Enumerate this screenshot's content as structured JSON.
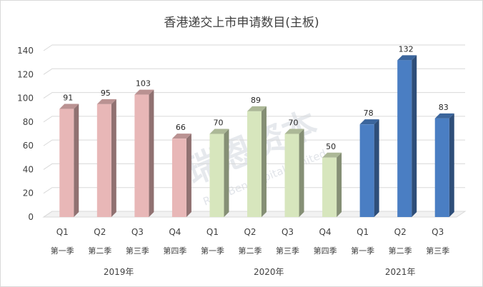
{
  "chart_data": {
    "type": "bar",
    "title": "香港递交上市申请数目(主板)",
    "ylim": [
      0,
      140
    ],
    "yticks": [
      0,
      20,
      40,
      60,
      80,
      100,
      120,
      140
    ],
    "grid": true,
    "legend": "none",
    "categories": [
      {
        "q": "Q1",
        "season": "第一季",
        "year": "2019年",
        "value": 91,
        "color": "#e8b7b7"
      },
      {
        "q": "Q2",
        "season": "第二季",
        "year": "2019年",
        "value": 95,
        "color": "#e8b7b7"
      },
      {
        "q": "Q3",
        "season": "第三季",
        "year": "2019年",
        "value": 103,
        "color": "#e8b7b7"
      },
      {
        "q": "Q4",
        "season": "第四季",
        "year": "2019年",
        "value": 66,
        "color": "#e8b7b7"
      },
      {
        "q": "Q1",
        "season": "第一季",
        "year": "2020年",
        "value": 70,
        "color": "#d7e6bd"
      },
      {
        "q": "Q2",
        "season": "第二季",
        "year": "2020年",
        "value": 89,
        "color": "#d7e6bd"
      },
      {
        "q": "Q3",
        "season": "第三季",
        "year": "2020年",
        "value": 70,
        "color": "#d7e6bd"
      },
      {
        "q": "Q4",
        "season": "第四季",
        "year": "2020年",
        "value": 50,
        "color": "#d7e6bd"
      },
      {
        "q": "Q1",
        "season": "第一季",
        "year": "2021年",
        "value": 78,
        "color": "#4a7ec3"
      },
      {
        "q": "Q2",
        "season": "第二季",
        "year": "2021年",
        "value": 132,
        "color": "#4a7ec3"
      },
      {
        "q": "Q3",
        "season": "第三季",
        "year": "2021年",
        "value": 83,
        "color": "#4a7ec3"
      }
    ],
    "years": [
      "2019年",
      "2020年",
      "2021年"
    ]
  },
  "watermark": {
    "text": "瑞恩资本",
    "subtext": "RyanBen Capital Limited"
  }
}
